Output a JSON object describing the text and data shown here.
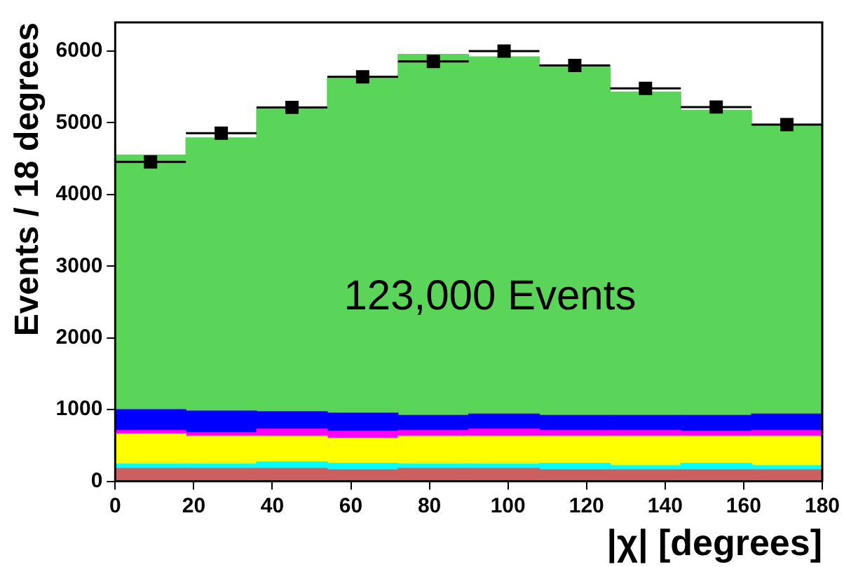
{
  "chart_data": {
    "type": "bar",
    "xlabel": "|χ| [degrees]",
    "ylabel": "Events / 18 degrees",
    "annotations": [
      "123,000 Events"
    ],
    "x": [
      9,
      27,
      45,
      63,
      81,
      99,
      117,
      135,
      153,
      171
    ],
    "stacked": true,
    "series": [
      {
        "color": "#cc5f5f",
        "values": [
          180,
          180,
          180,
          160,
          180,
          180,
          160,
          160,
          160,
          160
        ]
      },
      {
        "color": "#00ffff",
        "values": [
          60,
          60,
          90,
          90,
          60,
          60,
          90,
          60,
          90,
          60
        ]
      },
      {
        "color": "#ffff00",
        "values": [
          420,
          390,
          360,
          350,
          390,
          390,
          380,
          410,
          380,
          410
        ]
      },
      {
        "color": "#ff00ff",
        "values": [
          50,
          50,
          100,
          100,
          80,
          100,
          80,
          80,
          70,
          80
        ]
      },
      {
        "color": "#0000ff",
        "values": [
          290,
          300,
          240,
          250,
          210,
          210,
          210,
          210,
          220,
          230
        ]
      },
      {
        "color": "#5ad55a",
        "values": [
          3550,
          3810,
          4240,
          4670,
          5035,
          4980,
          4870,
          4510,
          4255,
          4025
        ]
      },
      {
        "type": "scatter",
        "color": "#000000",
        "marker": "square",
        "x": [
          9,
          27,
          45,
          63,
          81,
          99,
          117,
          135,
          153,
          171
        ],
        "values": [
          4455,
          4855,
          5215,
          5640,
          5855,
          6000,
          5800,
          5480,
          5220,
          4975
        ],
        "xerrors": [
          9,
          9,
          9,
          9,
          9,
          9,
          9,
          9,
          9,
          9
        ]
      }
    ],
    "xlim": [
      0,
      180
    ],
    "xticks": [
      0,
      20,
      40,
      60,
      80,
      100,
      120,
      140,
      160,
      180
    ],
    "ylim": [
      0,
      6400
    ],
    "yticks": [
      0,
      1000,
      2000,
      3000,
      4000,
      5000,
      6000
    ],
    "grid": false,
    "legend": false
  }
}
